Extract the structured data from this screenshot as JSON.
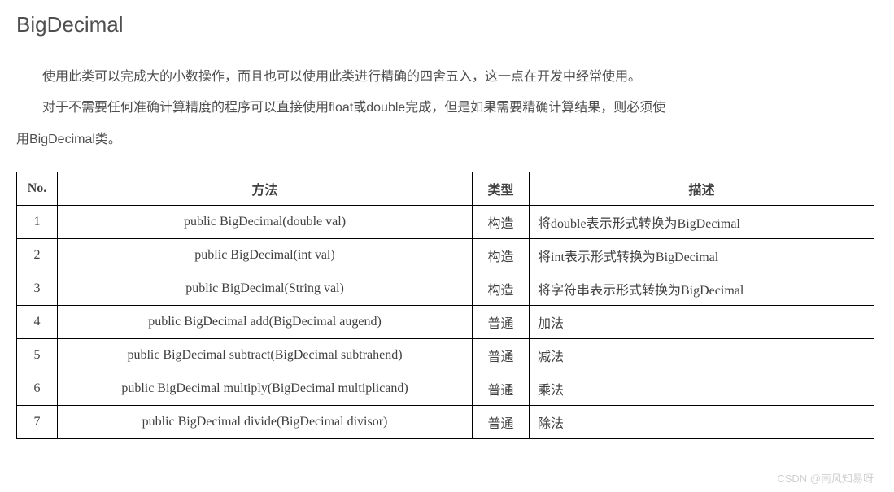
{
  "heading": "BigDecimal",
  "paragraph1": "使用此类可以完成大的小数操作，而且也可以使用此类进行精确的四舍五入，这一点在开发中经常使用。",
  "paragraph2": "对于不需要任何准确计算精度的程序可以直接使用float或double完成，但是如果需要精确计算结果，则必须使",
  "paragraph2_cont": "用BigDecimal类。",
  "table": {
    "headers": {
      "no": "No.",
      "method": "方法",
      "type": "类型",
      "desc": "描述"
    },
    "rows": [
      {
        "no": "1",
        "method": "public BigDecimal(double val)",
        "type": "构造",
        "desc": "将double表示形式转换为BigDecimal"
      },
      {
        "no": "2",
        "method": "public BigDecimal(int val)",
        "type": "构造",
        "desc": "将int表示形式转换为BigDecimal"
      },
      {
        "no": "3",
        "method": "public BigDecimal(String val)",
        "type": "构造",
        "desc": "将字符串表示形式转换为BigDecimal"
      },
      {
        "no": "4",
        "method": "public BigDecimal add(BigDecimal augend)",
        "type": "普通",
        "desc": "加法"
      },
      {
        "no": "5",
        "method": "public BigDecimal subtract(BigDecimal subtrahend)",
        "type": "普通",
        "desc": "减法"
      },
      {
        "no": "6",
        "method": "public BigDecimal multiply(BigDecimal multiplicand)",
        "type": "普通",
        "desc": "乘法"
      },
      {
        "no": "7",
        "method": "public BigDecimal divide(BigDecimal divisor)",
        "type": "普通",
        "desc": "除法"
      }
    ]
  },
  "watermark": "CSDN @南风知易呀"
}
